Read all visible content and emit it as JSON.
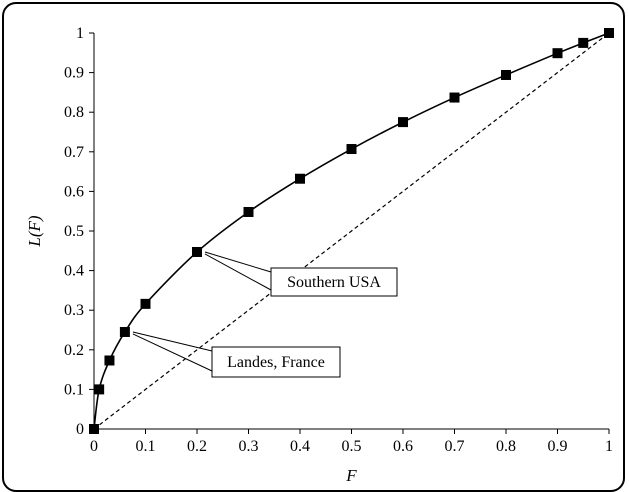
{
  "chart_data": {
    "type": "line",
    "title": "",
    "xlabel": "F",
    "ylabel": "L(F)",
    "xlim": [
      0,
      1
    ],
    "ylim": [
      0,
      1
    ],
    "x_ticks": [
      "0",
      "0.1",
      "0.2",
      "0.3",
      "0.4",
      "0.5",
      "0.6",
      "0.7",
      "0.8",
      "0.9",
      "1"
    ],
    "y_ticks": [
      "0",
      "0.1",
      "0.2",
      "0.3",
      "0.4",
      "0.5",
      "0.6",
      "0.7",
      "0.8",
      "0.9",
      "1"
    ],
    "grid": false,
    "series": [
      {
        "style": "solid-with-square-markers",
        "x": [
          0,
          0.01,
          0.03,
          0.06,
          0.1,
          0.2,
          0.3,
          0.4,
          0.5,
          0.6,
          0.7,
          0.8,
          0.9,
          0.95,
          1
        ],
        "y": [
          0,
          0.1,
          0.173,
          0.245,
          0.316,
          0.447,
          0.548,
          0.632,
          0.707,
          0.775,
          0.837,
          0.894,
          0.949,
          0.975,
          1
        ]
      },
      {
        "style": "dashed-diagonal",
        "x": [
          0,
          1
        ],
        "y": [
          0,
          1
        ]
      }
    ],
    "annotations": [
      {
        "text": "Southern USA",
        "x": 0.2,
        "y": 0.447
      },
      {
        "text": "Landes, France",
        "x": 0.06,
        "y": 0.245
      }
    ],
    "colors": {
      "line": "#000000",
      "marker": "#000000",
      "frame": "#000000"
    }
  }
}
